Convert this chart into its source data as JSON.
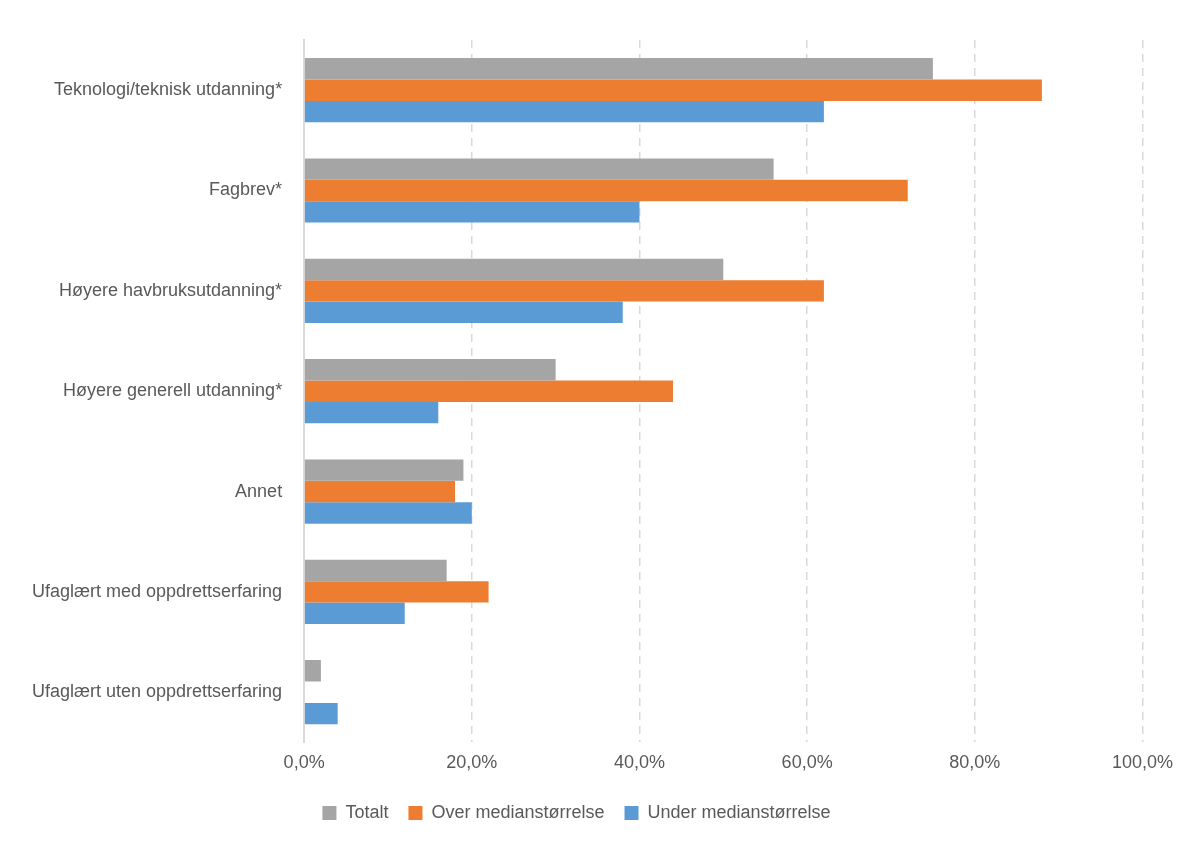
{
  "chart_data": {
    "type": "bar",
    "orientation": "horizontal",
    "categories": [
      "Teknologi/teknisk utdanning*",
      "Fagbrev*",
      "Høyere havbruksutdanning*",
      "Høyere generell utdanning*",
      "Annet",
      "Ufaglært med oppdrettserfaring",
      "Ufaglært uten oppdrettserfaring"
    ],
    "series": [
      {
        "name": "Totalt",
        "color": "#a5a5a5",
        "values": [
          75,
          56,
          50,
          30,
          19,
          17,
          2
        ]
      },
      {
        "name": "Over medianstørrelse",
        "color": "#ed7d31",
        "values": [
          88,
          72,
          62,
          44,
          18,
          22,
          0
        ]
      },
      {
        "name": "Under medianstørrelse",
        "color": "#5b9bd5",
        "values": [
          62,
          40,
          38,
          16,
          20,
          12,
          4
        ]
      }
    ],
    "xlim": [
      0,
      100
    ],
    "xticks": [
      {
        "value": 0,
        "label": "0,0%"
      },
      {
        "value": 20,
        "label": "20,0%"
      },
      {
        "value": 40,
        "label": "40,0%"
      },
      {
        "value": 60,
        "label": "60,0%"
      },
      {
        "value": 80,
        "label": "80,0%"
      },
      {
        "value": 100,
        "label": "100,0%"
      }
    ],
    "grid": "x",
    "legend": "bottom"
  }
}
